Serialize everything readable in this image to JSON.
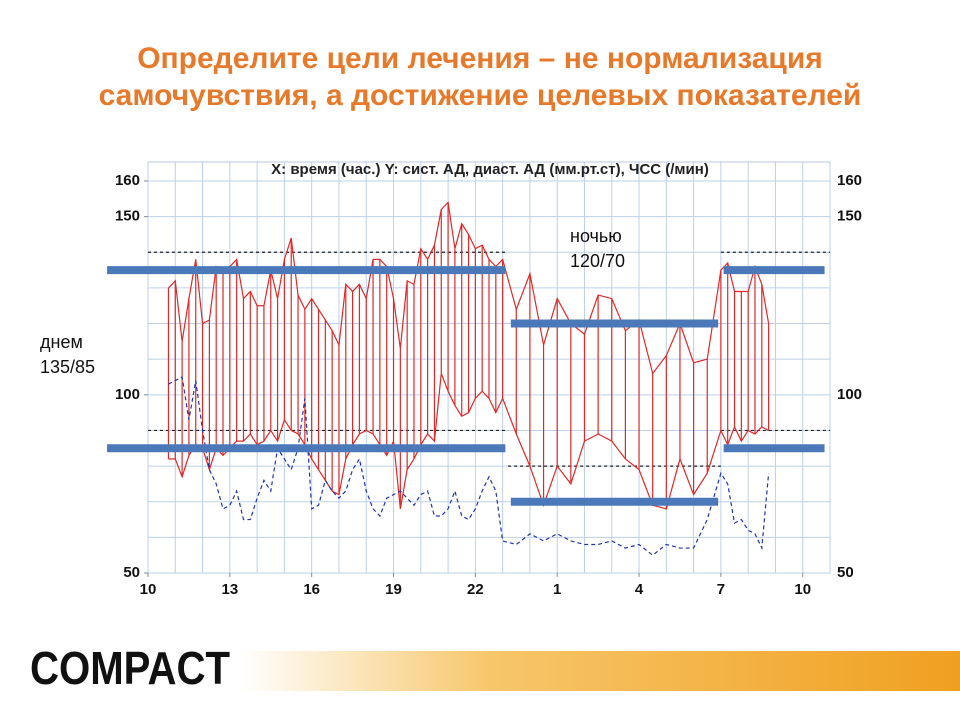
{
  "title_lines": [
    "Определите цели лечения – не нормализация",
    "самочувствия, а достижение целевых показателей"
  ],
  "footer": {
    "logo": "COMPACT"
  },
  "chart_data": {
    "type": "abpm",
    "title": "X: время (час.)  Y: сист. АД, диаст. АД (мм.рт.ст), ЧСС (/мин)",
    "xlim": [
      10,
      35
    ],
    "ylim": [
      50,
      160
    ],
    "xticks": [
      10,
      13,
      16,
      19,
      22,
      {
        "value": 25,
        "label": "1"
      },
      {
        "value": 28,
        "label": "4"
      },
      {
        "value": 31,
        "label": "7"
      },
      {
        "value": 34,
        "label": "10"
      }
    ],
    "yticks": [
      50,
      100,
      150,
      160
    ],
    "xgrid": [
      10,
      11,
      12,
      13,
      14,
      15,
      16,
      17,
      18,
      19,
      20,
      21,
      22,
      23,
      24,
      25,
      26,
      27,
      28,
      29,
      30,
      31,
      32,
      33,
      34,
      35
    ],
    "ygrid": [
      50,
      60,
      70,
      80,
      90,
      100,
      110,
      120,
      130,
      140,
      150,
      160
    ],
    "x": [
      10.75,
      11,
      11.25,
      11.5,
      11.75,
      12,
      12.25,
      12.5,
      12.75,
      13,
      13.25,
      13.5,
      13.75,
      14,
      14.25,
      14.5,
      14.75,
      15,
      15.25,
      15.5,
      15.75,
      16,
      16.25,
      16.5,
      16.75,
      17,
      17.25,
      17.5,
      17.75,
      18,
      18.25,
      18.5,
      18.75,
      19,
      19.25,
      19.5,
      19.75,
      20,
      20.25,
      20.5,
      20.75,
      21,
      21.25,
      21.5,
      21.75,
      22,
      22.25,
      22.5,
      22.75,
      23,
      23.5,
      24,
      24.5,
      25,
      25.5,
      26,
      26.5,
      27,
      27.5,
      28,
      28.5,
      29,
      29.5,
      30,
      30.5,
      31,
      31.25,
      31.5,
      31.75,
      32,
      32.25,
      32.5,
      32.75
    ],
    "series": [
      {
        "color": "#e02828",
        "style": "solid",
        "values": [
          130,
          132,
          115,
          127,
          138,
          120,
          121,
          136,
          134,
          136,
          138,
          127,
          129,
          125,
          125,
          135,
          127,
          138,
          144,
          128,
          124,
          127,
          124,
          121,
          118,
          114,
          131,
          129,
          131,
          127,
          138,
          138,
          136,
          127,
          113,
          132,
          131,
          141,
          138,
          142,
          152,
          154,
          141,
          148,
          145,
          141,
          142,
          138,
          136,
          138,
          124,
          134,
          114,
          127,
          120,
          117,
          128,
          127,
          118,
          121,
          106,
          111,
          120,
          109,
          110,
          135,
          137,
          129,
          129,
          129,
          136,
          131,
          120
        ]
      },
      {
        "color": "#e02828",
        "style": "solid",
        "values": [
          82,
          82,
          77,
          83,
          86,
          85,
          79,
          85,
          83,
          85,
          87,
          87,
          89,
          86,
          87,
          90,
          87,
          93,
          90,
          89,
          86,
          82,
          79,
          76,
          73,
          72,
          82,
          86,
          89,
          90,
          89,
          86,
          83,
          87,
          68,
          79,
          82,
          86,
          89,
          87,
          106,
          101,
          97,
          94,
          95,
          99,
          101,
          99,
          95,
          99,
          89,
          80,
          69,
          80,
          75,
          87,
          89,
          87,
          82,
          79,
          69,
          68,
          82,
          72,
          78,
          90,
          86,
          91,
          87,
          90,
          89,
          91,
          90
        ]
      },
      {
        "color": "#2035a8",
        "style": "dashed",
        "values": [
          103,
          104,
          105,
          93,
          104,
          90,
          79,
          75,
          68,
          69,
          73,
          65,
          65,
          71,
          76,
          73,
          85,
          82,
          79,
          85,
          99,
          68,
          69,
          76,
          73,
          71,
          73,
          79,
          82,
          73,
          68,
          66,
          71,
          72,
          73,
          71,
          69,
          72,
          73,
          66,
          66,
          68,
          73,
          66,
          65,
          68,
          73,
          77,
          73,
          59,
          58,
          61,
          59,
          61,
          59,
          58,
          58,
          59,
          57,
          58,
          55,
          58,
          57,
          57,
          65,
          78,
          75,
          64,
          65,
          62,
          61,
          57,
          78
        ]
      }
    ],
    "reference_lines": [
      {
        "x": [
          10,
          23.2
        ],
        "value": 140
      },
      {
        "x": [
          10,
          23.2
        ],
        "value": 90
      },
      {
        "x": [
          23.2,
          31
        ],
        "value": 80
      },
      {
        "x": [
          31,
          35
        ],
        "value": 140
      },
      {
        "x": [
          31,
          35
        ],
        "value": 90
      }
    ],
    "targets": [
      {
        "x": [
          8.5,
          23.1
        ],
        "values": [
          135,
          85
        ]
      },
      {
        "x": [
          23.3,
          30.9
        ],
        "values": [
          120,
          70
        ]
      },
      {
        "x": [
          31.1,
          34.8
        ],
        "values": [
          135,
          85
        ]
      }
    ],
    "target_color": "#4a78b8",
    "annotations": [
      {
        "lines": [
          "днем",
          "135/85"
        ]
      },
      {
        "lines": [
          "ночью",
          "120/70"
        ]
      }
    ]
  }
}
